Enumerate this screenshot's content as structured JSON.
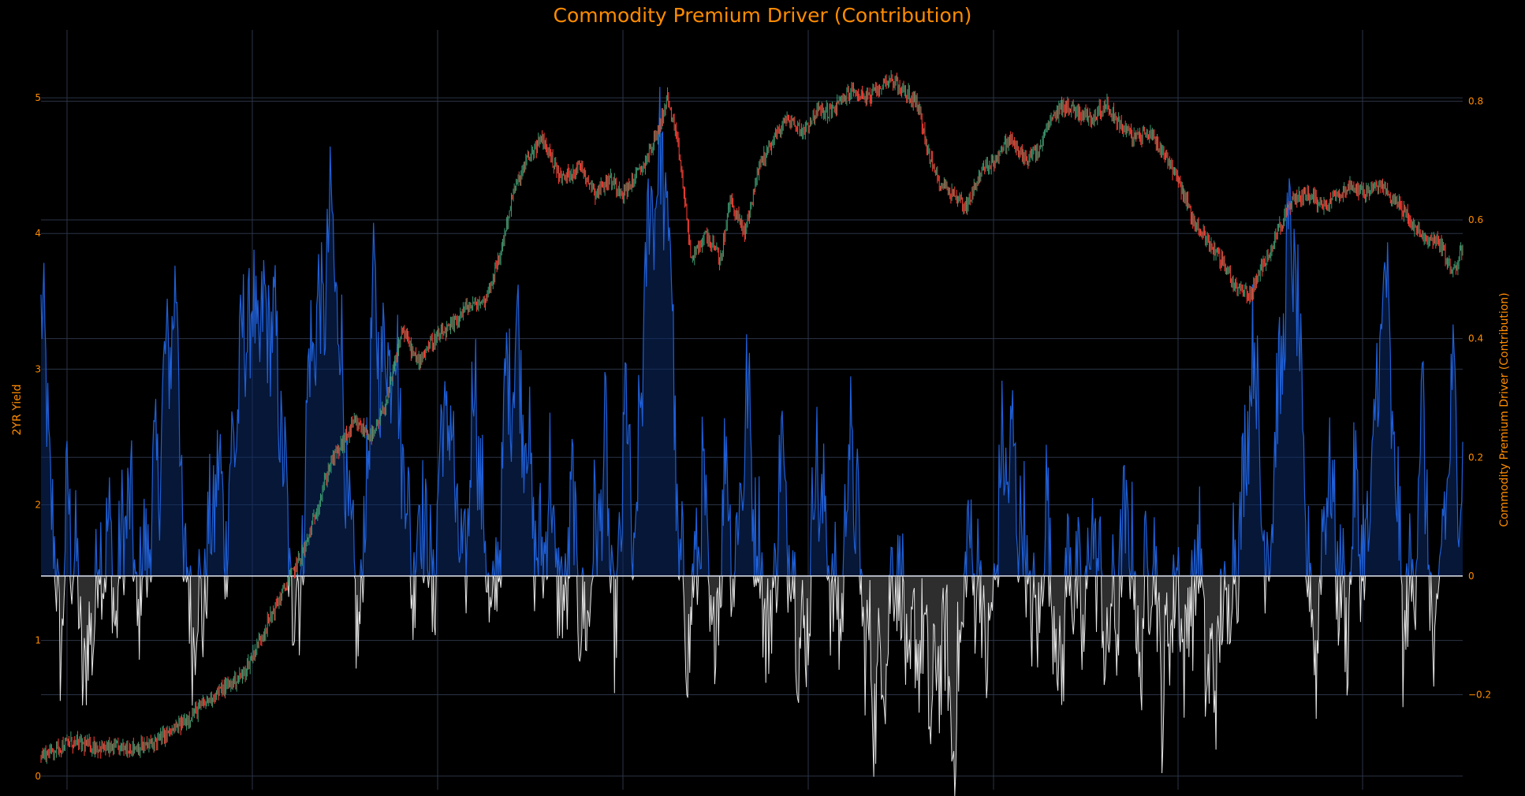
{
  "chart_data": {
    "type": "candlestick+area",
    "title": "Commodity Premium Driver (Contribution)",
    "y_left": {
      "label": "2YR Yield",
      "range": [
        -0.1,
        5.5
      ],
      "ticks": [
        0,
        1,
        2,
        3,
        4,
        5
      ]
    },
    "y_right": {
      "label": "Commodity Premium Driver (Contribution)",
      "range": [
        -0.36,
        0.92
      ],
      "ticks": [
        -0.2,
        0,
        0.2,
        0.4,
        0.6,
        0.8
      ]
    },
    "grid": true,
    "colors": {
      "up": "#3d9970",
      "down": "#ff4136",
      "positive": "#1f5fd6",
      "negative": "#e6e6e6",
      "accent": "#ff8c00"
    },
    "yield_path": [
      [
        0,
        0.15
      ],
      [
        30,
        0.25
      ],
      [
        70,
        0.2
      ],
      [
        110,
        0.22
      ],
      [
        140,
        0.35
      ],
      [
        180,
        0.6
      ],
      [
        210,
        0.75
      ],
      [
        240,
        1.2
      ],
      [
        275,
        1.7
      ],
      [
        300,
        2.3
      ],
      [
        325,
        2.6
      ],
      [
        345,
        2.5
      ],
      [
        360,
        2.8
      ],
      [
        375,
        3.3
      ],
      [
        390,
        3.05
      ],
      [
        405,
        3.2
      ],
      [
        425,
        3.3
      ],
      [
        440,
        3.45
      ],
      [
        460,
        3.5
      ],
      [
        475,
        3.8
      ],
      [
        490,
        4.3
      ],
      [
        505,
        4.55
      ],
      [
        520,
        4.7
      ],
      [
        540,
        4.4
      ],
      [
        560,
        4.5
      ],
      [
        575,
        4.3
      ],
      [
        590,
        4.4
      ],
      [
        605,
        4.3
      ],
      [
        625,
        4.5
      ],
      [
        640,
        4.75
      ],
      [
        650,
        5.0
      ],
      [
        662,
        4.6
      ],
      [
        675,
        3.8
      ],
      [
        690,
        4.0
      ],
      [
        705,
        3.8
      ],
      [
        715,
        4.25
      ],
      [
        730,
        4.0
      ],
      [
        745,
        4.5
      ],
      [
        760,
        4.7
      ],
      [
        775,
        4.85
      ],
      [
        790,
        4.75
      ],
      [
        805,
        4.9
      ],
      [
        820,
        4.9
      ],
      [
        840,
        5.05
      ],
      [
        860,
        5.0
      ],
      [
        880,
        5.15
      ],
      [
        895,
        5.05
      ],
      [
        910,
        4.95
      ],
      [
        920,
        4.6
      ],
      [
        930,
        4.4
      ],
      [
        945,
        4.3
      ],
      [
        960,
        4.2
      ],
      [
        975,
        4.45
      ],
      [
        990,
        4.55
      ],
      [
        1005,
        4.7
      ],
      [
        1020,
        4.55
      ],
      [
        1035,
        4.6
      ],
      [
        1045,
        4.8
      ],
      [
        1060,
        4.95
      ],
      [
        1075,
        4.9
      ],
      [
        1090,
        4.85
      ],
      [
        1105,
        4.95
      ],
      [
        1120,
        4.8
      ],
      [
        1135,
        4.7
      ],
      [
        1150,
        4.75
      ],
      [
        1165,
        4.6
      ],
      [
        1180,
        4.4
      ],
      [
        1195,
        4.1
      ],
      [
        1210,
        3.95
      ],
      [
        1225,
        3.8
      ],
      [
        1240,
        3.6
      ],
      [
        1255,
        3.55
      ],
      [
        1270,
        3.8
      ],
      [
        1285,
        4.05
      ],
      [
        1300,
        4.25
      ],
      [
        1315,
        4.3
      ],
      [
        1330,
        4.2
      ],
      [
        1345,
        4.3
      ],
      [
        1360,
        4.35
      ],
      [
        1375,
        4.3
      ],
      [
        1390,
        4.35
      ],
      [
        1405,
        4.25
      ],
      [
        1420,
        4.1
      ],
      [
        1435,
        3.95
      ],
      [
        1450,
        3.95
      ],
      [
        1465,
        3.7
      ],
      [
        1475,
        3.9
      ]
    ],
    "driver_path": [
      [
        0,
        0.44
      ],
      [
        8,
        0.25
      ],
      [
        14,
        0.0
      ],
      [
        22,
        -0.1
      ],
      [
        28,
        0.15
      ],
      [
        36,
        0.0
      ],
      [
        46,
        -0.18
      ],
      [
        58,
        0.0
      ],
      [
        68,
        0.08
      ],
      [
        78,
        -0.05
      ],
      [
        90,
        0.15
      ],
      [
        100,
        -0.05
      ],
      [
        112,
        0.08
      ],
      [
        122,
        0.2
      ],
      [
        134,
        0.42
      ],
      [
        142,
        0.45
      ],
      [
        148,
        0.0
      ],
      [
        160,
        -0.08
      ],
      [
        172,
        0.0
      ],
      [
        182,
        0.18
      ],
      [
        192,
        0.08
      ],
      [
        204,
        0.3
      ],
      [
        214,
        0.45
      ],
      [
        226,
        0.4
      ],
      [
        238,
        0.45
      ],
      [
        248,
        0.3
      ],
      [
        258,
        0.0
      ],
      [
        268,
        -0.05
      ],
      [
        280,
        0.4
      ],
      [
        292,
        0.45
      ],
      [
        302,
        0.6
      ],
      [
        312,
        0.35
      ],
      [
        322,
        0.0
      ],
      [
        332,
        -0.08
      ],
      [
        344,
        0.45
      ],
      [
        356,
        0.35
      ],
      [
        366,
        0.42
      ],
      [
        376,
        0.2
      ],
      [
        386,
        0.0
      ],
      [
        396,
        0.15
      ],
      [
        406,
        -0.05
      ],
      [
        418,
        0.3
      ],
      [
        428,
        0.2
      ],
      [
        438,
        -0.05
      ],
      [
        450,
        0.35
      ],
      [
        460,
        0.05
      ],
      [
        470,
        -0.1
      ],
      [
        482,
        0.3
      ],
      [
        494,
        0.4
      ],
      [
        506,
        0.2
      ],
      [
        516,
        0.0
      ],
      [
        528,
        0.15
      ],
      [
        540,
        -0.08
      ],
      [
        552,
        0.12
      ],
      [
        562,
        -0.12
      ],
      [
        574,
        0.05
      ],
      [
        586,
        0.2
      ],
      [
        596,
        -0.15
      ],
      [
        606,
        0.3
      ],
      [
        616,
        0.0
      ],
      [
        628,
        0.55
      ],
      [
        640,
        0.7
      ],
      [
        652,
        0.6
      ],
      [
        662,
        0.0
      ],
      [
        674,
        -0.1
      ],
      [
        686,
        0.15
      ],
      [
        698,
        -0.15
      ],
      [
        710,
        0.2
      ],
      [
        720,
        0.0
      ],
      [
        732,
        0.3
      ],
      [
        744,
        0.05
      ],
      [
        756,
        -0.12
      ],
      [
        768,
        0.2
      ],
      [
        780,
        0.0
      ],
      [
        792,
        -0.15
      ],
      [
        804,
        0.2
      ],
      [
        816,
        0.05
      ],
      [
        828,
        -0.1
      ],
      [
        840,
        0.25
      ],
      [
        852,
        -0.05
      ],
      [
        864,
        -0.2
      ],
      [
        876,
        -0.12
      ],
      [
        888,
        0.05
      ],
      [
        900,
        -0.18
      ],
      [
        912,
        -0.08
      ],
      [
        924,
        -0.22
      ],
      [
        936,
        -0.1
      ],
      [
        948,
        -0.28
      ],
      [
        960,
        0.05
      ],
      [
        972,
        0.0
      ],
      [
        984,
        -0.15
      ],
      [
        996,
        0.18
      ],
      [
        1008,
        0.2
      ],
      [
        1020,
        0.05
      ],
      [
        1032,
        -0.12
      ],
      [
        1044,
        0.12
      ],
      [
        1056,
        -0.18
      ],
      [
        1068,
        0.05
      ],
      [
        1080,
        -0.1
      ],
      [
        1092,
        0.1
      ],
      [
        1104,
        -0.12
      ],
      [
        1116,
        -0.05
      ],
      [
        1128,
        0.12
      ],
      [
        1140,
        -0.15
      ],
      [
        1152,
        0.08
      ],
      [
        1164,
        -0.2
      ],
      [
        1176,
        0.0
      ],
      [
        1188,
        -0.12
      ],
      [
        1200,
        0.05
      ],
      [
        1212,
        -0.2
      ],
      [
        1224,
        -0.1
      ],
      [
        1236,
        0.0
      ],
      [
        1248,
        0.15
      ],
      [
        1256,
        0.4
      ],
      [
        1262,
        0.3
      ],
      [
        1270,
        0.0
      ],
      [
        1280,
        0.2
      ],
      [
        1290,
        0.45
      ],
      [
        1298,
        0.6
      ],
      [
        1306,
        0.35
      ],
      [
        1314,
        0.0
      ],
      [
        1324,
        -0.12
      ],
      [
        1334,
        0.2
      ],
      [
        1344,
        0.05
      ],
      [
        1354,
        -0.1
      ],
      [
        1364,
        0.15
      ],
      [
        1374,
        0.0
      ],
      [
        1384,
        0.25
      ],
      [
        1394,
        0.52
      ],
      [
        1404,
        0.2
      ],
      [
        1414,
        -0.1
      ],
      [
        1424,
        0.0
      ],
      [
        1434,
        0.3
      ],
      [
        1444,
        -0.18
      ],
      [
        1454,
        0.05
      ],
      [
        1464,
        0.3
      ],
      [
        1475,
        0.15
      ]
    ]
  }
}
